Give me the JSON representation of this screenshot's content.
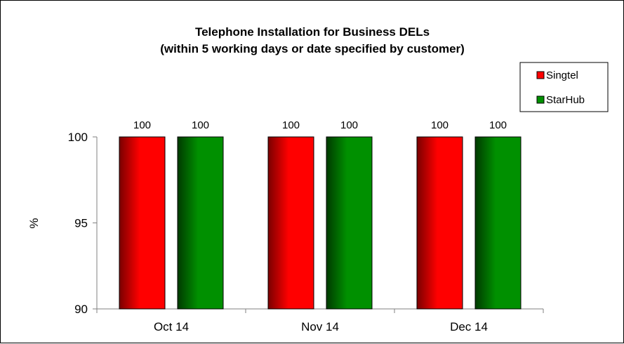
{
  "chart_data": {
    "type": "bar",
    "title": [
      "Telephone Installation for Business DELs",
      "(within 5 working days or date specified by customer)"
    ],
    "ylabel": "%",
    "xlabel": "",
    "categories": [
      "Oct 14",
      "Nov 14",
      "Dec 14"
    ],
    "series": [
      {
        "name": "Singtel",
        "values": [
          100,
          100,
          100
        ],
        "color": "#ff0000",
        "dark": "#7a0000"
      },
      {
        "name": "StarHub",
        "values": [
          100,
          100,
          100
        ],
        "color": "#009000",
        "dark": "#003a00"
      }
    ],
    "ylim": [
      90,
      100
    ],
    "yticks": [
      90,
      95,
      100
    ],
    "grid": false,
    "legend": "top-right",
    "data_labels": true
  }
}
